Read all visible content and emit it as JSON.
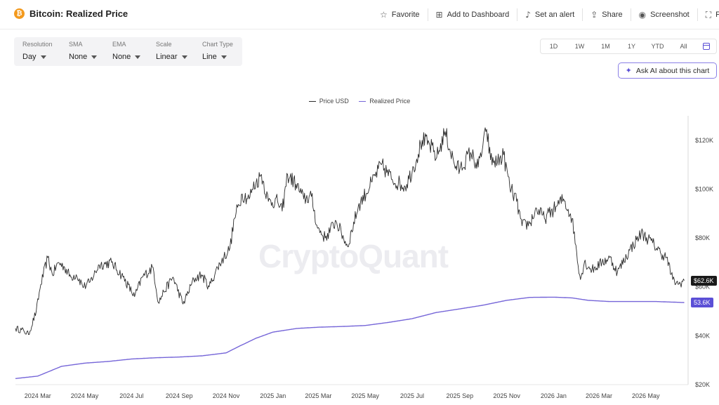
{
  "header": {
    "title": "Bitcoin: Realized Price",
    "actions": [
      {
        "label": "Favorite",
        "icon": "star-icon",
        "glyph": "☆"
      },
      {
        "label": "Add to Dashboard",
        "icon": "dashboard-icon",
        "glyph": "⊞"
      },
      {
        "label": "Set an alert",
        "icon": "bell-icon",
        "glyph": "♪"
      },
      {
        "label": "Share",
        "icon": "share-icon",
        "glyph": "⇪"
      },
      {
        "label": "Screenshot",
        "icon": "camera-icon",
        "glyph": "◉"
      },
      {
        "label": "Full",
        "icon": "fullscreen-icon",
        "glyph": "⛶"
      }
    ]
  },
  "controls": {
    "resolution": {
      "label": "Resolution",
      "value": "Day"
    },
    "sma": {
      "label": "SMA",
      "value": "None"
    },
    "ema": {
      "label": "EMA",
      "value": "None"
    },
    "scale": {
      "label": "Scale",
      "value": "Linear"
    },
    "chart_type": {
      "label": "Chart Type",
      "value": "Line"
    }
  },
  "ranges": [
    "1D",
    "1W",
    "1M",
    "1Y",
    "YTD",
    "All"
  ],
  "ask_ai": {
    "label": "Ask AI about this chart"
  },
  "watermark": "CryptoQuant",
  "colors": {
    "price": "#2b2b2b",
    "realized": "#7565d8",
    "accent": "#5b4fd6",
    "price_tag_bg": "#1a1a1a",
    "realized_tag_bg": "#5b4fd6"
  },
  "chart_data": {
    "type": "line",
    "title": "",
    "xlabel": "",
    "ylabel": "",
    "x_range": [
      "2024-02-01",
      "2026-06-25"
    ],
    "ylim": [
      20000,
      130000
    ],
    "y_ticks": [
      20000,
      40000,
      60000,
      80000,
      100000,
      120000
    ],
    "y_tick_labels": [
      "$20K",
      "$40K",
      "$60K",
      "$80K",
      "$100K",
      "$120K"
    ],
    "x_ticks": [
      "2024-03-01",
      "2024-05-01",
      "2024-07-01",
      "2024-09-01",
      "2024-11-01",
      "2025-01-01",
      "2025-03-01",
      "2025-05-01",
      "2025-07-01",
      "2025-09-01",
      "2025-11-01",
      "2026-01-01",
      "2026-03-01",
      "2026-05-01"
    ],
    "x_tick_labels": [
      "2024 Mar",
      "2024 May",
      "2024 Jul",
      "2024 Sep",
      "2024 Nov",
      "2025 Jan",
      "2025 Mar",
      "2025 May",
      "2025 Jul",
      "2025 Sep",
      "2025 Nov",
      "2026 Jan",
      "2026 Mar",
      "2026 May"
    ],
    "legend_position": "top-center",
    "series": [
      {
        "name": "Price USD",
        "points": [
          [
            "2024-02-01",
            43000
          ],
          [
            "2024-02-12",
            42000
          ],
          [
            "2024-02-18",
            40500
          ],
          [
            "2024-02-28",
            50000
          ],
          [
            "2024-03-05",
            61000
          ],
          [
            "2024-03-14",
            72000
          ],
          [
            "2024-03-20",
            65000
          ],
          [
            "2024-03-28",
            70000
          ],
          [
            "2024-04-05",
            68000
          ],
          [
            "2024-04-13",
            64000
          ],
          [
            "2024-04-20",
            65000
          ],
          [
            "2024-04-30",
            60000
          ],
          [
            "2024-05-08",
            62000
          ],
          [
            "2024-05-20",
            69000
          ],
          [
            "2024-06-05",
            70000
          ],
          [
            "2024-06-20",
            64000
          ],
          [
            "2024-07-05",
            56000
          ],
          [
            "2024-07-15",
            64000
          ],
          [
            "2024-07-29",
            68000
          ],
          [
            "2024-08-05",
            53500
          ],
          [
            "2024-08-12",
            58000
          ],
          [
            "2024-08-24",
            64000
          ],
          [
            "2024-09-06",
            53000
          ],
          [
            "2024-09-20",
            63000
          ],
          [
            "2024-09-30",
            65000
          ],
          [
            "2024-10-10",
            60000
          ],
          [
            "2024-10-21",
            68000
          ],
          [
            "2024-10-29",
            72000
          ],
          [
            "2024-11-06",
            76000
          ],
          [
            "2024-11-12",
            88000
          ],
          [
            "2024-11-22",
            98000
          ],
          [
            "2024-12-01",
            96000
          ],
          [
            "2024-12-05",
            100000
          ],
          [
            "2024-12-17",
            106000
          ],
          [
            "2024-12-26",
            95000
          ],
          [
            "2025-01-07",
            95000
          ],
          [
            "2025-01-13",
            91000
          ],
          [
            "2025-01-20",
            106000
          ],
          [
            "2025-01-31",
            102000
          ],
          [
            "2025-02-10",
            96000
          ],
          [
            "2025-02-20",
            97000
          ],
          [
            "2025-02-28",
            84000
          ],
          [
            "2025-03-10",
            80000
          ],
          [
            "2025-03-24",
            87000
          ],
          [
            "2025-04-08",
            76500
          ],
          [
            "2025-04-22",
            93000
          ],
          [
            "2025-05-10",
            103000
          ],
          [
            "2025-05-22",
            110000
          ],
          [
            "2025-06-05",
            104000
          ],
          [
            "2025-06-22",
            101000
          ],
          [
            "2025-07-03",
            109000
          ],
          [
            "2025-07-14",
            120000
          ],
          [
            "2025-07-24",
            118000
          ],
          [
            "2025-08-02",
            113000
          ],
          [
            "2025-08-13",
            123500
          ],
          [
            "2025-08-25",
            110000
          ],
          [
            "2025-09-01",
            108000
          ],
          [
            "2025-09-15",
            115000
          ],
          [
            "2025-09-25",
            109000
          ],
          [
            "2025-10-06",
            124500
          ],
          [
            "2025-10-11",
            112000
          ],
          [
            "2025-10-20",
            111000
          ],
          [
            "2025-10-28",
            114000
          ],
          [
            "2025-11-05",
            101000
          ],
          [
            "2025-11-14",
            95000
          ],
          [
            "2025-11-21",
            85000
          ],
          [
            "2025-12-01",
            86000
          ],
          [
            "2025-12-10",
            92000
          ],
          [
            "2025-12-20",
            88000
          ],
          [
            "2026-01-05",
            93000
          ],
          [
            "2026-01-14",
            96000
          ],
          [
            "2026-01-25",
            88000
          ],
          [
            "2026-02-05",
            63000
          ],
          [
            "2026-02-10",
            70000
          ],
          [
            "2026-02-20",
            67000
          ],
          [
            "2026-03-05",
            70000
          ],
          [
            "2026-03-15",
            72000
          ],
          [
            "2026-03-25",
            66000
          ],
          [
            "2026-04-10",
            75000
          ],
          [
            "2026-04-25",
            82000
          ],
          [
            "2026-05-10",
            78000
          ],
          [
            "2026-05-20",
            74000
          ],
          [
            "2026-05-28",
            72000
          ],
          [
            "2026-06-05",
            63000
          ],
          [
            "2026-06-12",
            61000
          ],
          [
            "2026-06-20",
            62600
          ]
        ]
      },
      {
        "name": "Realized Price",
        "points": [
          [
            "2024-02-01",
            22500
          ],
          [
            "2024-03-01",
            23500
          ],
          [
            "2024-04-01",
            27500
          ],
          [
            "2024-05-01",
            28800
          ],
          [
            "2024-06-01",
            29500
          ],
          [
            "2024-07-01",
            30500
          ],
          [
            "2024-08-01",
            31000
          ],
          [
            "2024-09-01",
            31300
          ],
          [
            "2024-10-01",
            31800
          ],
          [
            "2024-11-01",
            33000
          ],
          [
            "2024-11-20",
            36000
          ],
          [
            "2024-12-10",
            39000
          ],
          [
            "2025-01-01",
            41500
          ],
          [
            "2025-02-01",
            43000
          ],
          [
            "2025-03-01",
            43500
          ],
          [
            "2025-04-01",
            43800
          ],
          [
            "2025-05-01",
            44200
          ],
          [
            "2025-06-01",
            45500
          ],
          [
            "2025-07-01",
            47000
          ],
          [
            "2025-08-01",
            49500
          ],
          [
            "2025-09-01",
            51000
          ],
          [
            "2025-10-01",
            52500
          ],
          [
            "2025-11-01",
            54500
          ],
          [
            "2025-12-01",
            55700
          ],
          [
            "2026-01-01",
            55800
          ],
          [
            "2026-01-25",
            55500
          ],
          [
            "2026-02-15",
            54500
          ],
          [
            "2026-03-15",
            54000
          ],
          [
            "2026-04-15",
            54000
          ],
          [
            "2026-05-15",
            54000
          ],
          [
            "2026-06-20",
            53600
          ]
        ]
      }
    ],
    "last_values": {
      "price": "$62.6K",
      "realized": "53.6K"
    }
  }
}
